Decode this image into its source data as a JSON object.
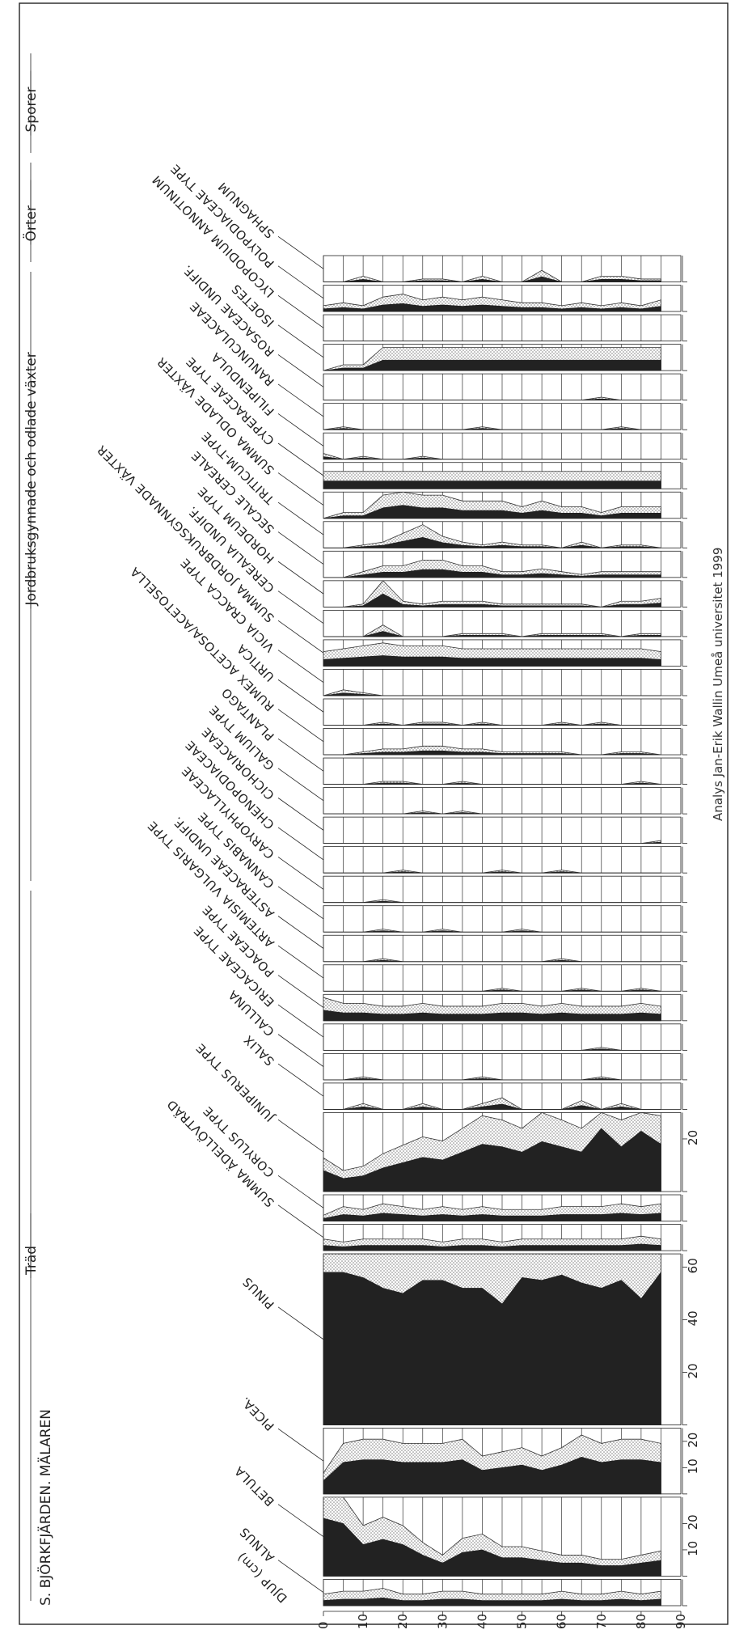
{
  "title": "S. BJÖRKFJÄRDEN. MÄLAREN",
  "credit": "Analys Jan-Erik Wallin Umeå universitet 1999",
  "colors": {
    "ink": "#222222",
    "stipple": "#9a9a9a",
    "paper": "#ffffff"
  },
  "chart_data": {
    "type": "area",
    "grid": true,
    "depth_axis": {
      "label": "DJUP (cm)",
      "range": [
        0,
        90
      ],
      "ticks": [
        0,
        10,
        20,
        30,
        40,
        50,
        60,
        70,
        80,
        90
      ],
      "samples": [
        0,
        5,
        10,
        15,
        20,
        25,
        30,
        35,
        40,
        45,
        50,
        55,
        60,
        65,
        70,
        75,
        80,
        85
      ]
    },
    "groups": [
      {
        "label": "Träd"
      },
      {
        "label": "Jordbruksgynnade och odlade växter"
      },
      {
        "label": "Örter"
      },
      {
        "label": "Sporer"
      }
    ],
    "taxa": [
      {
        "name": "ALNUS",
        "scale": 10,
        "ticks": [],
        "values": [
          2,
          2.5,
          2.5,
          3,
          2,
          2,
          2.5,
          2.5,
          2,
          2,
          2,
          2,
          2.5,
          2,
          2,
          2.5,
          2,
          2.5
        ]
      },
      {
        "name": "BETULA",
        "scale": 30,
        "ticks": [
          10,
          20
        ],
        "values": [
          22,
          20,
          12,
          14,
          12,
          8,
          5,
          9,
          10,
          7,
          7,
          6,
          5,
          5,
          4,
          4,
          5,
          6
        ]
      },
      {
        "name": "PICEA.",
        "scale": 25,
        "ticks": [
          10,
          20
        ],
        "values": [
          5,
          12,
          13,
          13,
          12,
          12,
          12,
          13,
          9,
          10,
          11,
          9,
          11,
          14,
          12,
          13,
          13,
          12
        ]
      },
      {
        "name": "PINUS",
        "scale": 65,
        "ticks": [
          20,
          40,
          60
        ],
        "values": [
          58,
          58,
          56,
          52,
          50,
          55,
          55,
          52,
          52,
          46,
          56,
          55,
          57,
          54,
          52,
          55,
          48,
          58
        ]
      },
      {
        "name": "SUMMA ÄDELLÖVTRÄD",
        "scale": 10,
        "ticks": [],
        "values": [
          2,
          1.5,
          2,
          2,
          2,
          2,
          1.5,
          2,
          2,
          1.5,
          2,
          2,
          2,
          2,
          2,
          2,
          2.5,
          2
        ]
      },
      {
        "name": "CORYLUS TYPE",
        "scale": 10,
        "ticks": [],
        "values": [
          1,
          2.5,
          2,
          3,
          2.5,
          2,
          2.5,
          2,
          2.5,
          2,
          2,
          2,
          2.5,
          2.5,
          2.5,
          3,
          2.5,
          3
        ]
      },
      {
        "name": "JUNIPERUS TYPE",
        "scale": 30,
        "ticks": [
          20
        ],
        "values": [
          8,
          5,
          6,
          9,
          11,
          13,
          12,
          15,
          18,
          17,
          15,
          19,
          17,
          15,
          24,
          17,
          23,
          18
        ]
      },
      {
        "name": "SALIX",
        "scale": 10,
        "ticks": [],
        "values": [
          0,
          0,
          1,
          0,
          0,
          1,
          0,
          0,
          1,
          2,
          0,
          0,
          0,
          1.5,
          0,
          1,
          0,
          0
        ]
      },
      {
        "name": "CALLUNA",
        "scale": 10,
        "ticks": [],
        "values": [
          0,
          0,
          0.5,
          0,
          0,
          0,
          0,
          0,
          0.5,
          0,
          0,
          0,
          0,
          0,
          0.5,
          0,
          0,
          0
        ]
      },
      {
        "name": "ERICACEAE TYPE",
        "scale": 10,
        "ticks": [],
        "values": [
          0,
          0,
          0,
          0,
          0,
          0,
          0,
          0,
          0,
          0,
          0,
          0,
          0,
          0,
          0.5,
          0,
          0,
          0
        ]
      },
      {
        "name": "POACEAE TYPE",
        "scale": 10,
        "ticks": [],
        "values": [
          4,
          3,
          3,
          2.5,
          2.5,
          3,
          2.5,
          2.5,
          2.5,
          3,
          3,
          2.5,
          3,
          2.5,
          2.5,
          2.5,
          3,
          2.5
        ]
      },
      {
        "name": "ARTEMISIA VULGARIS TYPE",
        "scale": 10,
        "ticks": [],
        "values": [
          0,
          0,
          0,
          0,
          0,
          0,
          0,
          0,
          0,
          0.5,
          0,
          0,
          0,
          0.5,
          0,
          0,
          0.5,
          0
        ]
      },
      {
        "name": "ASTERACEAE UNDIFF.",
        "scale": 10,
        "ticks": [],
        "values": [
          0,
          0,
          0,
          0.5,
          0,
          0,
          0,
          0,
          0,
          0,
          0,
          0,
          0.5,
          0,
          0,
          0,
          0,
          0
        ]
      },
      {
        "name": "CANNABIS TYPE",
        "scale": 10,
        "ticks": [],
        "values": [
          0,
          0,
          0,
          0.5,
          0,
          0,
          0.5,
          0,
          0,
          0,
          0.5,
          0,
          0,
          0,
          0,
          0,
          0,
          0
        ]
      },
      {
        "name": "CARYOPHYLLACEAE",
        "scale": 10,
        "ticks": [],
        "values": [
          0,
          0,
          0,
          0.5,
          0,
          0,
          0,
          0,
          0,
          0,
          0,
          0,
          0,
          0,
          0,
          0,
          0,
          0
        ]
      },
      {
        "name": "CHENOPODIACEAE",
        "scale": 10,
        "ticks": [],
        "values": [
          0,
          0,
          0,
          0,
          0.5,
          0,
          0,
          0,
          0,
          0.5,
          0,
          0,
          0.5,
          0,
          0,
          0,
          0,
          0
        ]
      },
      {
        "name": "CICHORIACEAE",
        "scale": 10,
        "ticks": [],
        "values": [
          0,
          0,
          0,
          0,
          0,
          0,
          0,
          0,
          0,
          0,
          0,
          0,
          0,
          0,
          0,
          0,
          0,
          0.5
        ]
      },
      {
        "name": "GALIUM TYPE",
        "scale": 10,
        "ticks": [],
        "values": [
          0,
          0,
          0,
          0,
          0,
          0.5,
          0,
          0.5,
          0,
          0,
          0,
          0,
          0,
          0,
          0,
          0,
          0,
          0
        ]
      },
      {
        "name": "PLANTAGO",
        "scale": 10,
        "ticks": [],
        "values": [
          0,
          0,
          0,
          0.5,
          0.5,
          0,
          0,
          0.5,
          0,
          0,
          0,
          0,
          0,
          0,
          0,
          0,
          0.5,
          0
        ]
      },
      {
        "name": "RUMEX ACETOSA/ACETOSELLA",
        "scale": 10,
        "ticks": [],
        "values": [
          0,
          0,
          0.5,
          1,
          1,
          1.5,
          1.5,
          1,
          1,
          0.5,
          0.5,
          0.5,
          0.5,
          0,
          0,
          0.5,
          0.5,
          0
        ]
      },
      {
        "name": "URTICA",
        "scale": 10,
        "ticks": [],
        "values": [
          0,
          0,
          0,
          0.5,
          0,
          0.5,
          0.5,
          0,
          0.5,
          0,
          0,
          0,
          0.5,
          0,
          0.5,
          0,
          0,
          0
        ]
      },
      {
        "name": "VICIA CRACCA TYPE",
        "scale": 10,
        "ticks": [],
        "values": [
          0,
          1,
          0.5,
          0,
          0,
          0,
          0,
          0,
          0,
          0,
          0,
          0,
          0,
          0,
          0,
          0,
          0,
          0
        ]
      },
      {
        "name": "SUMMA JORDBRUKSGYNNADE VÄXTER",
        "scale": 10,
        "ticks": [],
        "values": [
          2.5,
          3,
          3.5,
          4,
          3.5,
          3.5,
          3.5,
          3,
          3,
          3,
          3,
          3,
          3,
          3,
          3,
          3,
          3,
          2.5
        ]
      },
      {
        "name": "CEREALIA UNDIFF.",
        "scale": 10,
        "ticks": [],
        "values": [
          0,
          0,
          0,
          2,
          0,
          0,
          0,
          0.5,
          0.5,
          0.5,
          0,
          0.5,
          0.5,
          0.5,
          0.5,
          0,
          0.5,
          0.5
        ]
      },
      {
        "name": "HORDEUM TYPE",
        "scale": 10,
        "ticks": [],
        "values": [
          0,
          0,
          0.5,
          5,
          1,
          0.5,
          1,
          1,
          1,
          0.5,
          0.5,
          0.5,
          0.5,
          0.5,
          0,
          1,
          1,
          1.5
        ]
      },
      {
        "name": "SECALE CEREALE",
        "scale": 10,
        "ticks": [],
        "values": [
          0,
          0,
          1,
          2,
          2,
          3,
          3,
          2,
          2,
          1,
          1,
          1.5,
          1,
          0.5,
          1,
          1,
          1,
          1
        ]
      },
      {
        "name": "TRITICUM-TYPE",
        "scale": 10,
        "ticks": [],
        "values": [
          0,
          0,
          0.5,
          1,
          2.5,
          4,
          2,
          1,
          0.5,
          1,
          0.5,
          0.5,
          0,
          1,
          0,
          0.5,
          0.5,
          0
        ]
      },
      {
        "name": "SUMMA ODLADE VÄXTER",
        "scale": 10,
        "ticks": [],
        "values": [
          0,
          1,
          1,
          4,
          5,
          4,
          4,
          3,
          3,
          3,
          2,
          3,
          2,
          2,
          1,
          2,
          2,
          2
        ]
      },
      {
        "name": "CYPERACEAE TYPE",
        "scale": 10,
        "ticks": [],
        "values": [
          3,
          3,
          3,
          3,
          3,
          3,
          3,
          3,
          3,
          3,
          3,
          3,
          3,
          3,
          3,
          3,
          3,
          3
        ]
      },
      {
        "name": "FILIPENDULA",
        "scale": 10,
        "ticks": [],
        "values": [
          1,
          0,
          0.5,
          0,
          0,
          0.5,
          0,
          0,
          0,
          0,
          0,
          0,
          0,
          0,
          0,
          0,
          0,
          0
        ]
      },
      {
        "name": "RANUNCULACEAE",
        "scale": 10,
        "ticks": [],
        "values": [
          0,
          0.5,
          0,
          0,
          0,
          0,
          0,
          0,
          0.5,
          0,
          0,
          0,
          0,
          0,
          0,
          0.5,
          0,
          0
        ]
      },
      {
        "name": "ROSACEAE UNDIFF.",
        "scale": 10,
        "ticks": [],
        "values": [
          0,
          0,
          0,
          0,
          0,
          0,
          0,
          0,
          0,
          0,
          0,
          0,
          0,
          0,
          0.5,
          0,
          0,
          0
        ]
      },
      {
        "name": "ISOETES",
        "scale": 10,
        "ticks": [],
        "values": [
          0,
          1,
          1,
          4,
          4,
          4,
          4,
          4,
          4,
          4,
          4,
          4,
          4,
          4,
          4,
          4,
          4,
          4
        ]
      },
      {
        "name": "LYCOPODIUM ANNOTINUM",
        "scale": 10,
        "ticks": [],
        "values": [
          0,
          0,
          0,
          0,
          0,
          0,
          0,
          0,
          0,
          0,
          0,
          0,
          0,
          0,
          0,
          0,
          0,
          0
        ]
      },
      {
        "name": "POLYPODIACEAE TYPE",
        "scale": 10,
        "ticks": [],
        "values": [
          1,
          1.5,
          1,
          2.5,
          3,
          2,
          2.5,
          2,
          2.5,
          2,
          1.5,
          1.5,
          1,
          1.5,
          1,
          1.5,
          1,
          2
        ]
      },
      {
        "name": "SPHAGNUM",
        "scale": 10,
        "ticks": [],
        "values": [
          0,
          0,
          1,
          0,
          0,
          0.5,
          0.5,
          0,
          1,
          0,
          0,
          2,
          0,
          0,
          1,
          1,
          0.5,
          0.5
        ]
      }
    ]
  }
}
